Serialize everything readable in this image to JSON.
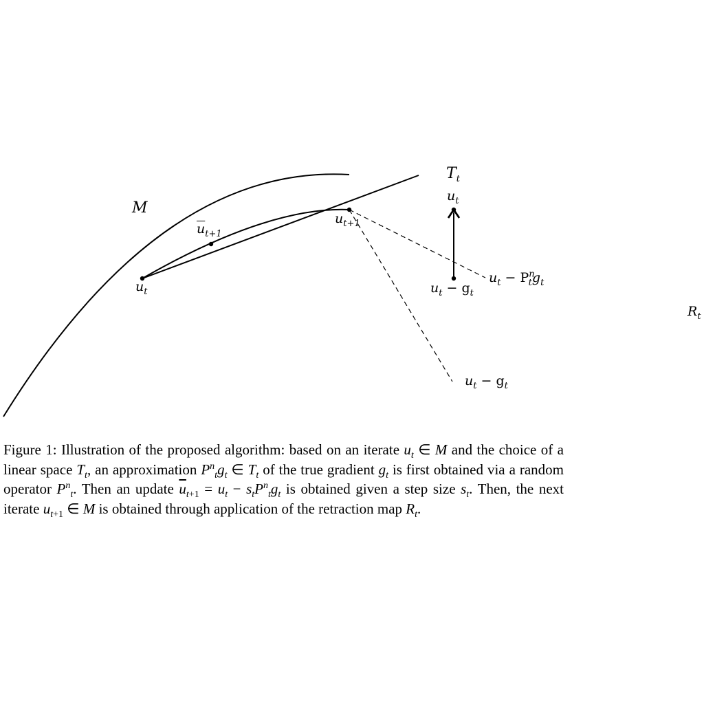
{
  "figure": {
    "labels": {
      "manifold": "M",
      "tangent_space": "T",
      "tangent_sub": "t",
      "u_t": "u",
      "u_t_sub": "t",
      "u_bar_next": "u",
      "u_bar_next_sub": "t+1",
      "u_next": "u",
      "u_next_sub": "t+1",
      "u_t_top": "u",
      "u_t_top_sub": "t",
      "u_minus_g_vec": "u",
      "u_minus_g_vec_rest": " − g",
      "u_minus_Pg": "u",
      "u_minus_Pg_rest": " − P",
      "u_minus_g_bottom": "u",
      "u_minus_g_bottom_rest": " − g",
      "retraction": "R",
      "retraction_sub": "t"
    }
  },
  "caption": {
    "text": "Figure 1: Illustration of the proposed algorithm: based on an iterate u_t ∈ M and the choice of a linear space T_t, an approximation P_t^n g_t ∈ T_t of the true gradient g_t is first obtained via a random operator P_t^n. Then an update ū_{t+1} = u_t − s_t P_t^n g_t is obtained given a step size s_t. Then, the next iterate u_{t+1} ∈ M is obtained through application of the retraction map R_t."
  }
}
